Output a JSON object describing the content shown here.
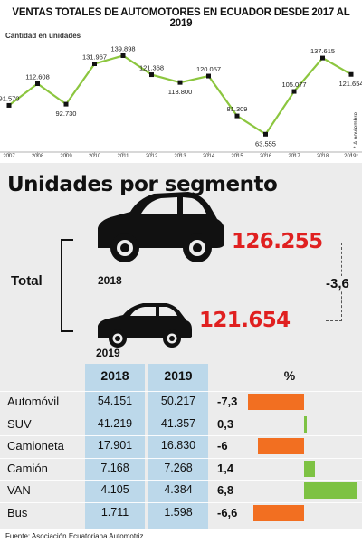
{
  "header": {
    "title": "VENTAS TOTALES DE AUTOMOTORES EN ECUADOR DESDE 2017 AL 2019",
    "subtitle": "Cantidad en unidades"
  },
  "chart_data": [
    {
      "type": "line",
      "title": "VENTAS TOTALES DE AUTOMOTORES EN ECUADOR DESDE 2017 AL 2019",
      "subtitle": "Cantidad en unidades",
      "x": [
        "2007",
        "2008",
        "2009",
        "2010",
        "2011",
        "2012",
        "2013",
        "2014",
        "2015",
        "2016",
        "2017",
        "2018",
        "2019*"
      ],
      "values": [
        91570,
        112608,
        92730,
        131967,
        139898,
        121368,
        113800,
        120057,
        81309,
        63555,
        105077,
        137615,
        121654
      ],
      "labels": [
        "91.570",
        "112.608",
        "92.730",
        "131.967",
        "139.898",
        "121.368",
        "113.800",
        "120.057",
        "81.309",
        "63.555",
        "105.077",
        "137.615",
        "121.654"
      ],
      "ylim": [
        55000,
        150000
      ],
      "annotation": "* A noviembre",
      "line_color": "#8cc63f",
      "marker_color": "#111111",
      "grid": false
    },
    {
      "type": "table",
      "title": "Unidades por segmento",
      "columns": [
        "2018",
        "2019",
        "%"
      ],
      "rows": [
        {
          "name": "Automóvil",
          "v2018": "54.151",
          "v2019": "50.217",
          "pct": "-7,3",
          "pct_value": -7.3
        },
        {
          "name": "SUV",
          "v2018": "41.219",
          "v2019": "41.357",
          "pct": "0,3",
          "pct_value": 0.3
        },
        {
          "name": "Camioneta",
          "v2018": "17.901",
          "v2019": "16.830",
          "pct": "-6",
          "pct_value": -6
        },
        {
          "name": "Camión",
          "v2018": "7.168",
          "v2019": "7.268",
          "pct": "1,4",
          "pct_value": 1.4
        },
        {
          "name": "VAN",
          "v2018": "4.105",
          "v2019": "4.384",
          "pct": "6,8",
          "pct_value": 6.8
        },
        {
          "name": "Bus",
          "v2018": "1.711",
          "v2019": "1.598",
          "pct": "-6,6",
          "pct_value": -6.6
        }
      ],
      "negative_color": "#f26f21",
      "positive_color": "#7dc243"
    }
  ],
  "segments": {
    "title": "Unidades por segmento",
    "total_label": "Total",
    "year_2018": "2018",
    "year_2019": "2019",
    "total_2018": "126.255",
    "total_2019": "121.654",
    "difference": "-3,6",
    "col_2018": "2018",
    "col_2019": "2019",
    "col_pct": "%",
    "highlight_color": "#e02020",
    "column_color": "#bcd8ea"
  },
  "footer": {
    "source": "Fuente: Asociación Ecuatoriana Automotriz"
  }
}
